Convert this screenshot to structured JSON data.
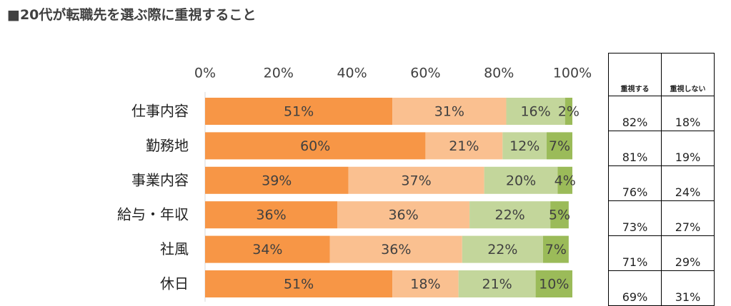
{
  "title": "■20代が転職先を選ぶ際に重視すること",
  "chart_data": {
    "type": "bar",
    "orientation": "horizontal",
    "stacked": true,
    "percent_stacked": true,
    "categories": [
      "仕事内容",
      "勤務地",
      "事業内容",
      "給与・年収",
      "社風",
      "休日"
    ],
    "series": [
      {
        "values": [
          51,
          60,
          39,
          36,
          34,
          51
        ],
        "color": "#F79646"
      },
      {
        "values": [
          31,
          21,
          37,
          36,
          36,
          18
        ],
        "color": "#FAC090"
      },
      {
        "values": [
          16,
          12,
          20,
          22,
          22,
          21
        ],
        "color": "#C3D69B"
      },
      {
        "values": [
          2,
          7,
          4,
          5,
          7,
          10
        ],
        "color": "#9BBB59"
      }
    ],
    "data_labels": [
      [
        "51%",
        "31%",
        "16%",
        "2%"
      ],
      [
        "60%",
        "21%",
        "12%",
        "7%"
      ],
      [
        "39%",
        "37%",
        "20%",
        "4%"
      ],
      [
        "36%",
        "36%",
        "22%",
        "5%"
      ],
      [
        "34%",
        "36%",
        "22%",
        "7%"
      ],
      [
        "51%",
        "18%",
        "21%",
        "10%"
      ]
    ],
    "x_ticks": [
      "0%",
      "20%",
      "40%",
      "60%",
      "80%",
      "100%"
    ],
    "xlim": [
      0,
      100
    ],
    "x_axis_position": "top",
    "legend": "none"
  },
  "summary_table": {
    "headers": [
      "重視する",
      "重視しない"
    ],
    "rows": [
      [
        "82%",
        "18%"
      ],
      [
        "81%",
        "19%"
      ],
      [
        "76%",
        "24%"
      ],
      [
        "73%",
        "27%"
      ],
      [
        "71%",
        "29%"
      ],
      [
        "69%",
        "31%"
      ]
    ]
  }
}
